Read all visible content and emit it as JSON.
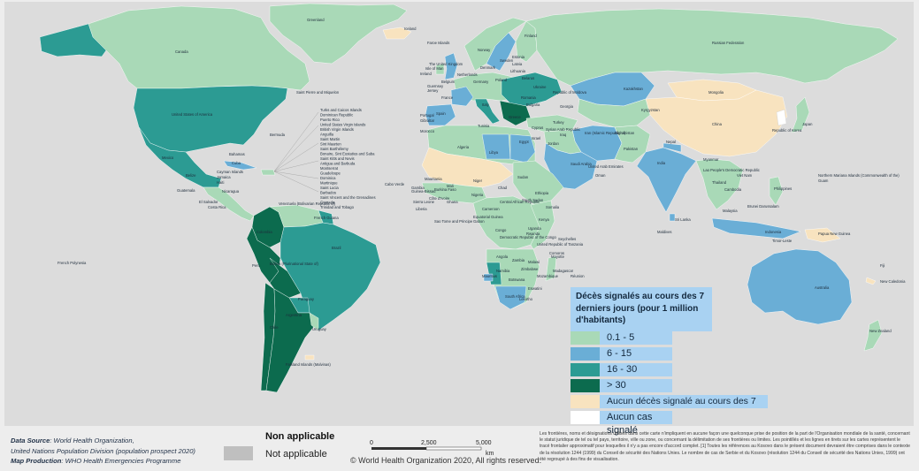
{
  "legend": {
    "title": "Décès signalés au cours des 7 derniers jours (pour 1 million d'habitants)",
    "items": [
      {
        "label": "0.1 - 5",
        "color": "#a9d9b7"
      },
      {
        "label": "6 - 15",
        "color": "#6aaed6"
      },
      {
        "label": "16 - 30",
        "color": "#2c9b93"
      },
      {
        "label": "> 30",
        "color": "#0c6b4e"
      },
      {
        "label": "Aucun décès signalé au cours des 7",
        "color": "#f8e3bf"
      },
      {
        "label": "Aucun cas signalé",
        "color": "#ffffff"
      }
    ]
  },
  "colors": {
    "ocean": "#dcdcdc",
    "no_deaths": "#f8e3bf",
    "low": "#a9d9b7",
    "mid": "#6aaed6",
    "high": "#2c9b93",
    "very_high": "#0c6b4e",
    "not_applicable": "#bfbfbf"
  },
  "footer": {
    "data_source_label": "Data Source",
    "data_source_line1": ": World Health Organization,",
    "data_source_line2": "United Nations Population Division (population prospect 2020)",
    "map_production_label": "Map Production",
    "map_production_value": ": WHO Health Emergencies Programme",
    "not_applicable_title": "Non applicable",
    "not_applicable_label": "Not applicable",
    "scale_0": "0",
    "scale_1": "2,500",
    "scale_2": "5,000",
    "scale_unit": "km",
    "copyright": "© World Health Organization 2020, All rights reserved.",
    "disclaimer": "Les frontières, noms et désignations utilisés dans cette carte n'impliquent en aucune façon une quelconque prise de position de la part de l'Organisation mondiale de la santé, concernant le statut juridique de tel ou tel pays, territoire, ville ou zone, ou concernant la délimitation de ses frontières ou limites. Les pointillés et les lignes en tirets sur les cartes représentent le tracé frontalier approximatif pour lesquelles il n'y a pas encore d'accord complet. [1] Toutes les références au Kosovo dans le présent document devraient être comprises dans le contexte de la résolution 1244 (1999) du Conseil de sécurité des Nations Unies. Le nombre de cas de Serbie et du Kosovo (résolution 1244 du Conseil de sécurité des Nations Unies, 1999) ont été regroupé à des fins de visualisation."
  },
  "labels": {
    "greenland": "Greenland",
    "iceland": "Iceland",
    "canada": "Canada",
    "usa": "United States of America",
    "mexico": "Mexico",
    "spm": "Saint Pierre and Miquelon",
    "bermuda": "Bermuda",
    "bahamas": "Bahamas",
    "cuba": "Cuba",
    "caribbean": [
      "Turks and Caicos Islands",
      "Dominican Republic",
      "Puerto Rico",
      "United States Virgin Islands",
      "British Virgin Islands",
      "Anguilla",
      "Saint Martin",
      "Sint Maarten",
      "Saint Barthélemy",
      "Bonaire, Sint Eustatius and Saba",
      "Saint Kitts and Nevis",
      "Antigua and Barbuda",
      "Montserrat",
      "Guadeloupe",
      "Dominica",
      "Martinique",
      "Saint Lucia",
      "Barbados",
      "Saint Vincent and the Grenadines",
      "Grenada",
      "Trinidad and Tobago"
    ],
    "cayman": "Cayman Islands",
    "jamaica": "Jamaica",
    "haiti": "Haiti",
    "belize": "Belize",
    "guatemala": "Guatemala",
    "el_salvador": "El Salvador",
    "nicaragua": "Nicaragua",
    "costa_rica": "Costa Rica",
    "venezuela": "Venezuela (Bolivarian Republic of)",
    "french_guiana": "French Guiana",
    "colombia": "Colombia",
    "brazil": "Brazil",
    "peru": "Peru",
    "bolivia": "Bolivia (Plurinational State of)",
    "paraguay": "Paraguay",
    "chile": "Chile",
    "argentina": "Argentina",
    "uruguay": "Uruguay",
    "falkland": "Falkland Islands (Malvinas)",
    "french_polynesia": "French Polynesia",
    "cabo_verde": "Cabo Verde",
    "faroe": "Faroe Islands",
    "uk": "The United Kingdom",
    "isle_of_man": "Isle of Man",
    "ireland": "Ireland",
    "netherlands": "Netherlands",
    "belgium": "Belgium",
    "guernsey": "Guernsey",
    "jersey": "Jersey",
    "germany": "Germany",
    "france": "France",
    "portugal": "Portugal",
    "spain": "Spain",
    "gibraltar": "Gibraltar",
    "morocco": "Morocco",
    "algeria": "Algeria",
    "tunisia": "Tunisia",
    "libya": "Libya",
    "egypt": "Egypt",
    "italy": "Italy",
    "norway": "Norway",
    "sweden": "Sweden",
    "finland": "Finland",
    "denmark": "Denmark",
    "estonia": "Estonia",
    "latvia": "Latvia",
    "lithuania": "Lithuania",
    "poland": "Poland",
    "belarus": "Belarus",
    "ukraine": "Ukraine",
    "moldova": "Republic of Moldova",
    "romania": "Romania",
    "bulgaria": "Bulgaria",
    "greece": "Greece",
    "turkey": "Turkey",
    "georgia": "Georgia",
    "russia": "Russian Federation",
    "kazakhstan": "Kazakhstan",
    "mongolia": "Mongolia",
    "china": "China",
    "japan": "Japan",
    "korea": "Republic of Korea",
    "kyrgyzstan": "Kyrgyzstan",
    "iran": "Iran (Islamic Republic of)",
    "iraq": "Iraq",
    "syria": "Syrian Arab Republic",
    "cyprus": "Cyprus",
    "israel": "Israel",
    "jordan": "Jordan",
    "saudi": "Saudi Arabia",
    "uae": "United Arab Emirates",
    "oman": "Oman",
    "afghanistan": "Afghanistan",
    "pakistan": "Pakistan",
    "india": "India",
    "nepal": "Nepal",
    "myanmar": "Myanmar",
    "laos": "Lao People's Democratic Republic",
    "viet_nam": "Viet Nam",
    "thailand": "Thailand",
    "cambodia": "Cambodia",
    "malaysia": "Malaysia",
    "brunei": "Brunei Darussalam",
    "indonesia": "Indonesia",
    "philippines": "Philippines",
    "timor": "Timor-Leste",
    "png": "Papua New Guinea",
    "sri_lanka": "Sri Lanka",
    "maldives": "Maldives",
    "nmi": "Northern Mariana Islands (Commonwealth of the)",
    "guam": "Guam",
    "australia": "Australia",
    "new_zealand": "New Zealand",
    "new_caledonia": "New Caledonia",
    "fiji": "Fiji",
    "mauritania": "Mauritania",
    "mali": "Mali",
    "niger": "Niger",
    "chad": "Chad",
    "sudan": "Sudan",
    "ethiopia": "Ethiopia",
    "somalia": "Somalia",
    "kenya": "Kenya",
    "nigeria": "Nigeria",
    "gambia": "Gambia",
    "guinea_bissau": "Guinea-Bissau",
    "sierra_leone": "Sierra Leone",
    "liberia": "Liberia",
    "cote": "Côte d'Ivoire",
    "burkina": "Burkina Faso",
    "ghana": "Ghana",
    "car": "Central African Republic",
    "south_sudan": "South Sudan",
    "cameroon": "Cameroon",
    "gabon": "Gabon",
    "sao_tome": "Sao Tome and Principe",
    "eq_guinea": "Equatorial Guinea",
    "congo": "Congo",
    "drc": "Democratic Republic of the Congo",
    "uganda": "Uganda",
    "rwanda": "Rwanda",
    "tanzania": "United Republic of Tanzania",
    "angola": "Angola",
    "zambia": "Zambia",
    "malawi": "Malawi",
    "mozambique": "Mozambique",
    "zimbabwe": "Zimbabwe",
    "namibia": "Namibia",
    "botswana": "Botswana",
    "south_africa": "South Africa",
    "madagascar": "Madagascar",
    "mauritius": "Mauritius",
    "reunion": "Réunion",
    "mayotte": "Mayotte",
    "seychelles": "Seychelles",
    "comoros": "Comoros",
    "eswatini": "Eswatini",
    "lesotho": "Lesotho"
  }
}
